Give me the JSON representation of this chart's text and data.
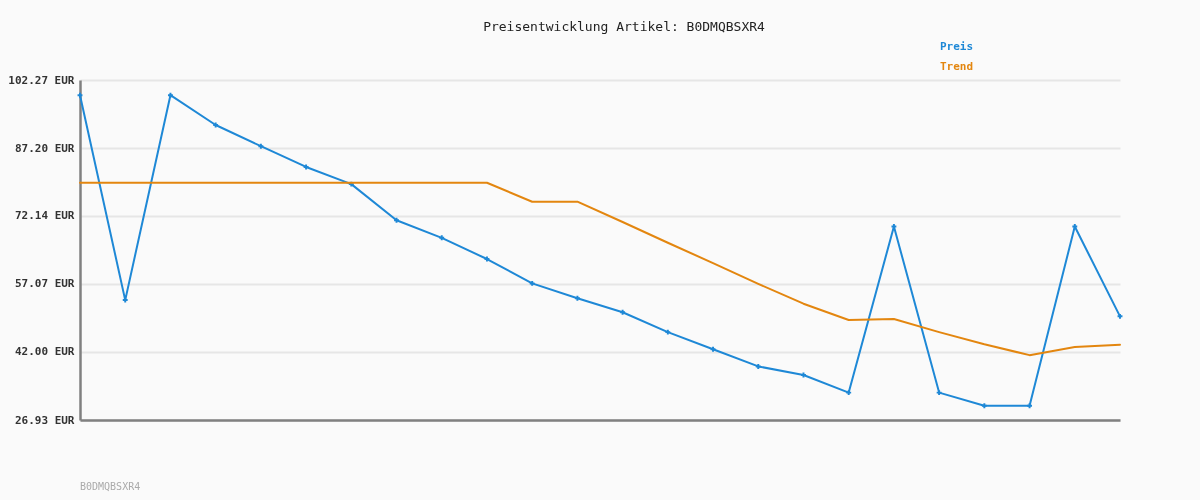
{
  "chart_data": {
    "type": "line",
    "title": "Preisentwicklung Artikel: B0DMQBSXR4",
    "categories": [
      null,
      null,
      null,
      null,
      null,
      null,
      null,
      null,
      null,
      null,
      null,
      null,
      null,
      null,
      null,
      null,
      null,
      null,
      null,
      null,
      null,
      null,
      null,
      null
    ],
    "series": [
      {
        "name": "Preis",
        "color": "#1e88d6",
        "marker": "cross",
        "values": [
          98.9,
          53.5,
          98.9,
          92.3,
          87.6,
          83.0,
          79.2,
          71.2,
          67.3,
          62.6,
          57.2,
          53.9,
          50.8,
          46.4,
          42.6,
          38.8,
          36.9,
          33.0,
          69.8,
          33.0,
          30.1,
          30.1,
          69.8,
          49.9
        ]
      },
      {
        "name": "Trend",
        "color": "#e3860f",
        "values": [
          79.5,
          79.5,
          79.5,
          79.5,
          79.5,
          79.5,
          79.5,
          79.5,
          79.5,
          79.5,
          75.3,
          75.3,
          70.8,
          66.2,
          61.7,
          57.1,
          52.7,
          49.1,
          49.3,
          46.4,
          43.7,
          41.3,
          43.1,
          43.6
        ]
      }
    ],
    "ylim": [
      26.93,
      102.27
    ],
    "yticks": [
      {
        "value": 26.93,
        "label": "26.93 EUR"
      },
      {
        "value": 42.0,
        "label": "42.00 EUR"
      },
      {
        "value": 57.07,
        "label": "57.07 EUR"
      },
      {
        "value": 72.14,
        "label": "72.14 EUR"
      },
      {
        "value": 87.2,
        "label": "87.20 EUR"
      },
      {
        "value": 102.27,
        "label": "102.27 EUR"
      }
    ],
    "grid": "y",
    "legend": "top right",
    "tick_labels": "y",
    "annotations": [
      "B0DMQBSXR4"
    ]
  }
}
